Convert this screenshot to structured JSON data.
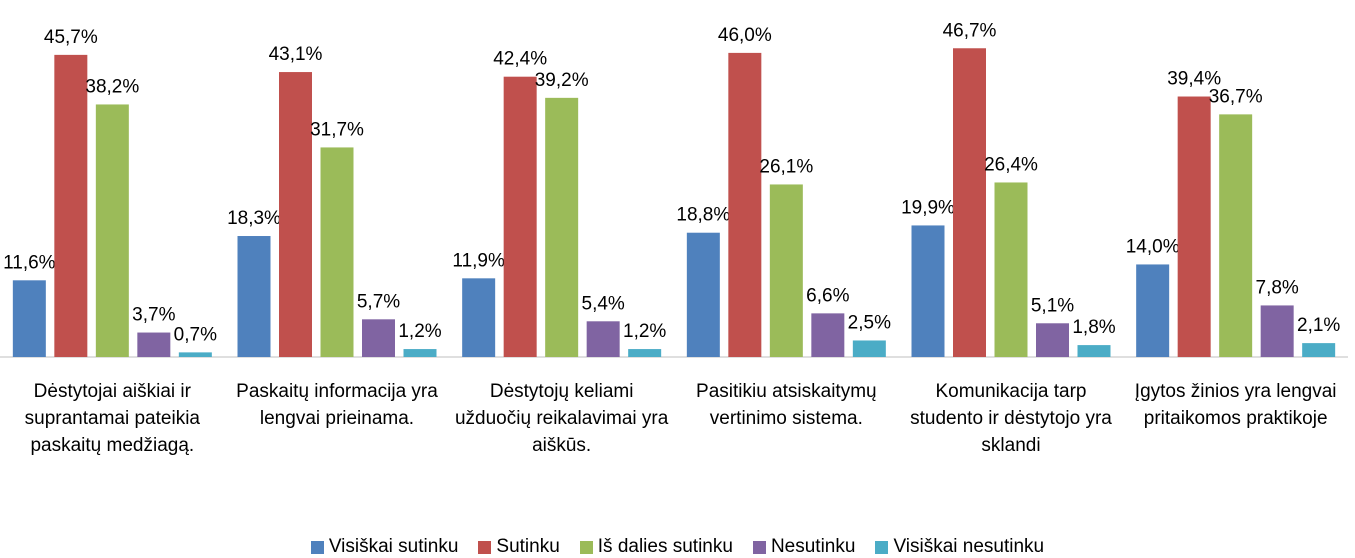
{
  "chart_data": {
    "type": "bar",
    "categories": [
      "Dėstytojai aiškiai ir suprantamai pateikia paskaitų medžiagą.",
      "Paskaitų informacija yra lengvai prieinama.",
      "Dėstytojų keliami užduočių reikalavimai yra aiškūs.",
      "Pasitikiu atsiskaitymų vertinimo sistema.",
      "Komunikacija tarp studento ir dėstytojo yra sklandi",
      "Įgytos žinios yra lengvai pritaikomos praktikoje"
    ],
    "series": [
      {
        "name": "Visiškai sutinku",
        "color": "#4f81bd",
        "values": [
          11.6,
          18.3,
          11.9,
          18.8,
          19.9,
          14.0
        ],
        "value_labels": [
          "11,6%",
          "18,3%",
          "11,9%",
          "18,8%",
          "19,9%",
          "14,0%"
        ]
      },
      {
        "name": "Sutinku",
        "color": "#c0504d",
        "values": [
          45.7,
          43.1,
          42.4,
          46.0,
          46.7,
          39.4
        ],
        "value_labels": [
          "45,7%",
          "43,1%",
          "42,4%",
          "46,0%",
          "46,7%",
          "39,4%"
        ]
      },
      {
        "name": "Iš dalies sutinku",
        "color": "#9bbb59",
        "values": [
          38.2,
          31.7,
          39.2,
          26.1,
          26.4,
          36.7
        ],
        "value_labels": [
          "38,2%",
          "31,7%",
          "39,2%",
          "26,1%",
          "26,4%",
          "36,7%"
        ]
      },
      {
        "name": "Nesutinku",
        "color": "#8064a2",
        "values": [
          3.7,
          5.7,
          5.4,
          6.6,
          5.1,
          7.8
        ],
        "value_labels": [
          "3,7%",
          "5,7%",
          "5,4%",
          "6,6%",
          "5,1%",
          "7,8%"
        ]
      },
      {
        "name": "Visiškai nesutinku",
        "color": "#4bacc6",
        "values": [
          0.7,
          1.2,
          1.2,
          2.5,
          1.8,
          2.1
        ],
        "value_labels": [
          "0,7%",
          "1,2%",
          "1,2%",
          "2,5%",
          "1,8%",
          "2,1%"
        ]
      }
    ],
    "ylim": [
      0,
      54
    ],
    "legend": "bottom"
  }
}
